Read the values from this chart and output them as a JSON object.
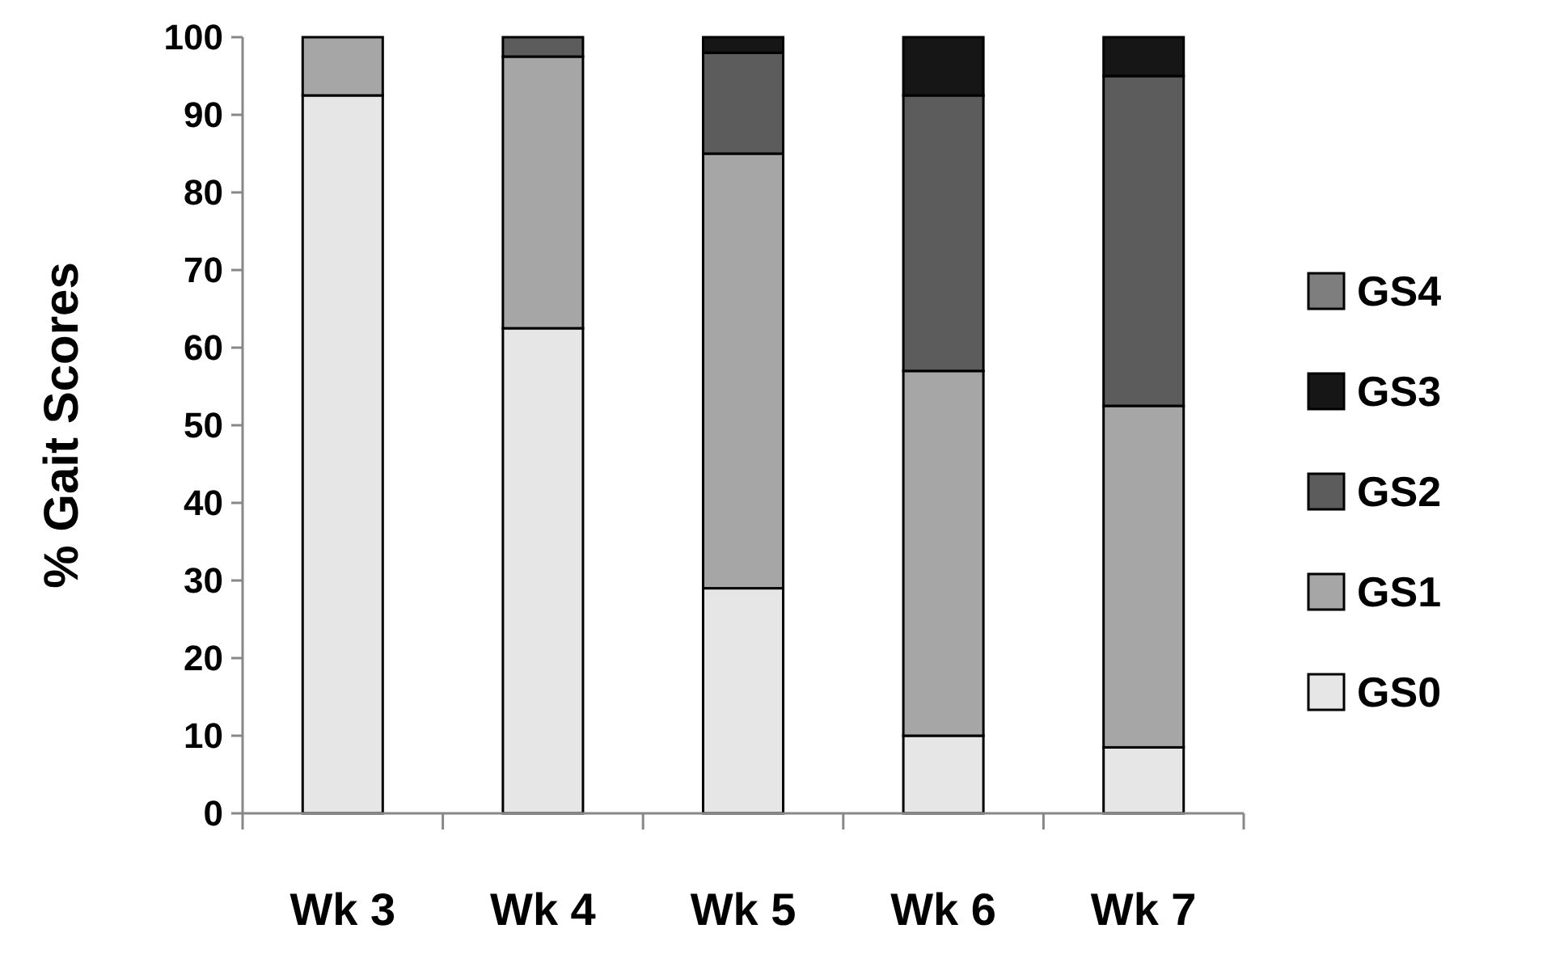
{
  "chart_data": {
    "type": "bar",
    "stacked": true,
    "ylabel": "% Gait Scores",
    "categories": [
      "Wk 3",
      "Wk 4",
      "Wk 5",
      "Wk 6",
      "Wk 7"
    ],
    "series": [
      {
        "name": "GS0",
        "color": "#e6e6e6",
        "values": [
          92.5,
          62.5,
          29,
          10,
          8.5
        ]
      },
      {
        "name": "GS1",
        "color": "#a6a6a6",
        "values": [
          7.5,
          35,
          56,
          47,
          44
        ]
      },
      {
        "name": "GS2",
        "color": "#5c5c5c",
        "values": [
          0,
          2.5,
          13,
          35.5,
          42.5
        ]
      },
      {
        "name": "GS3",
        "color": "#161616",
        "values": [
          0,
          0,
          2,
          7.5,
          5
        ]
      },
      {
        "name": "GS4",
        "color": "#7e7e7e",
        "values": [
          0,
          0,
          0,
          0,
          0
        ]
      }
    ],
    "ylim": [
      0,
      100
    ],
    "yticks": [
      0,
      10,
      20,
      30,
      40,
      50,
      60,
      70,
      80,
      90,
      100
    ],
    "grid": false,
    "legend": "right"
  }
}
